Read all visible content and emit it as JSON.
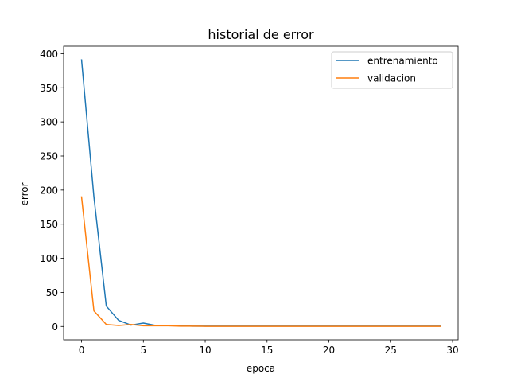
{
  "chart_data": {
    "type": "line",
    "title": "historial de error",
    "xlabel": "epoca",
    "ylabel": "error",
    "xlim": [
      -1.45,
      30.45
    ],
    "ylim": [
      -19.5,
      411
    ],
    "xticks": [
      0,
      5,
      10,
      15,
      20,
      25,
      30
    ],
    "yticks": [
      0,
      50,
      100,
      150,
      200,
      250,
      300,
      350,
      400
    ],
    "grid": false,
    "legend_position": "top-right",
    "x": [
      0,
      1,
      2,
      3,
      4,
      5,
      6,
      7,
      8,
      9,
      10,
      11,
      12,
      13,
      14,
      15,
      16,
      17,
      18,
      19,
      20,
      21,
      22,
      23,
      24,
      25,
      26,
      27,
      28,
      29
    ],
    "series": [
      {
        "name": "entrenamiento",
        "color": "#1f77b4",
        "values": [
          391,
          190,
          30,
          9,
          2,
          5,
          1.5,
          1.5,
          1,
          0.5,
          0.5,
          0.5,
          0.5,
          0.5,
          0.5,
          0.5,
          0.5,
          0.5,
          0.5,
          0.5,
          0.5,
          0.5,
          0.5,
          0.5,
          0.5,
          0.5,
          0.5,
          0.5,
          0.5,
          0.5
        ]
      },
      {
        "name": "validacion",
        "color": "#ff7f0e",
        "values": [
          190,
          23,
          3,
          1.5,
          3,
          1,
          1,
          1,
          0.5,
          0.5,
          0.2,
          0.2,
          0.2,
          0.2,
          0.2,
          0.2,
          0.2,
          0.2,
          0.2,
          0.2,
          0.2,
          0.2,
          0.2,
          0.2,
          0.2,
          0.2,
          0.2,
          0.2,
          0.2,
          0.2
        ]
      }
    ]
  }
}
